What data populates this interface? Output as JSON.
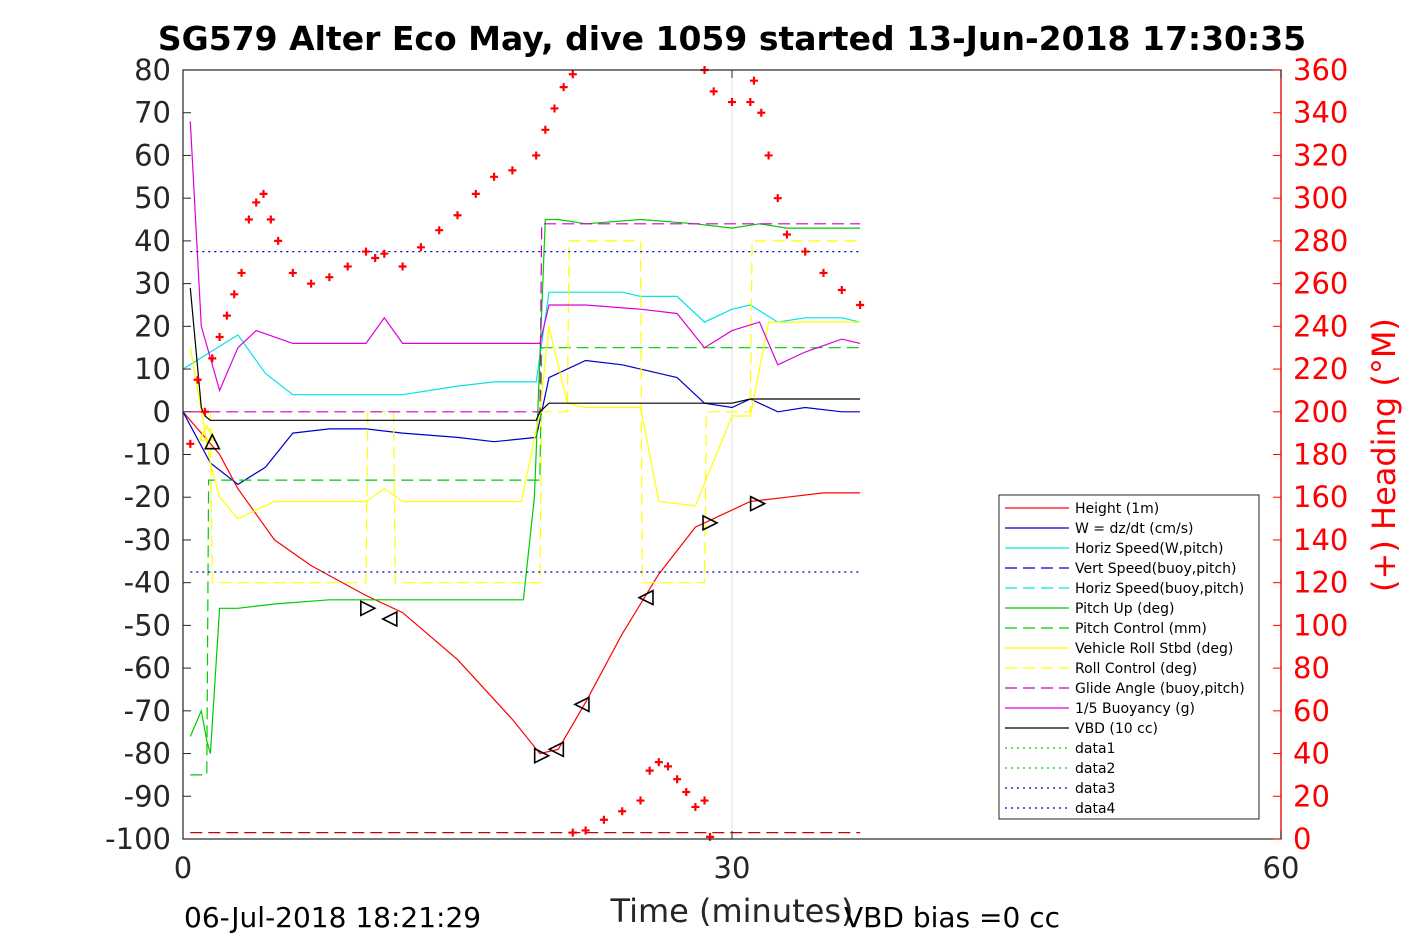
{
  "chart_data": {
    "type": "line",
    "title": "SG579 Alter Eco May, dive 1059 started 13-Jun-2018 17:30:35",
    "xlabel": "Time (minutes)",
    "ylabel": "",
    "y2label": "(+) Heading (°M)",
    "xlim": [
      0,
      60
    ],
    "ylim": [
      -100,
      80
    ],
    "y2lim": [
      0,
      360
    ],
    "xticks": [
      "0",
      "30",
      "60"
    ],
    "yticks": [
      "80",
      "70",
      "60",
      "50",
      "40",
      "30",
      "20",
      "10",
      "0",
      "-10",
      "-20",
      "-30",
      "-40",
      "-50",
      "-60",
      "-70",
      "-80",
      "-90",
      "-100"
    ],
    "y2ticks": [
      "360",
      "340",
      "320",
      "300",
      "280",
      "260",
      "240",
      "220",
      "200",
      "180",
      "160",
      "140",
      "120",
      "100",
      "80",
      "60",
      "40",
      "20",
      "0"
    ],
    "grid": "x-only at 30",
    "legend_position": "lower-right",
    "footer_left": "06-Jul-2018 18:21:29",
    "footer_right": "VBD bias =0 cc",
    "colors": {
      "axis": "#000000",
      "right_axis": "#ff0000"
    },
    "series": [
      {
        "name": "Height (1m)",
        "color": "#ff0000",
        "style": "solid",
        "x": [
          0,
          1,
          2,
          3,
          4,
          5,
          7,
          10,
          12,
          15,
          18,
          19.5,
          20.5,
          22,
          24,
          26,
          28,
          29.5,
          31,
          33,
          35,
          37
        ],
        "y": [
          0,
          -5,
          -10,
          -18,
          -24,
          -30,
          -36,
          -43,
          -47,
          -58,
          -72,
          -80,
          -79,
          -68,
          -52,
          -38,
          -27,
          -24,
          -21,
          -20,
          -19,
          -19
        ]
      },
      {
        "name": "W = dz/dt (cm/s)",
        "color": "#0000cc",
        "style": "solid",
        "x": [
          0,
          1.5,
          3,
          4.5,
          6,
          8,
          10,
          12,
          15,
          17,
          19.3,
          20,
          22,
          24,
          25,
          27,
          28.5,
          30,
          31,
          32.5,
          34,
          36,
          37
        ],
        "y": [
          0,
          -12,
          -17,
          -13,
          -5,
          -4,
          -4,
          -5,
          -6,
          -7,
          -6,
          8,
          12,
          11,
          10,
          8,
          2,
          1,
          3,
          0,
          1,
          0,
          0
        ]
      },
      {
        "name": "Horiz Speed(W,pitch)",
        "color": "#00e5e5",
        "style": "solid",
        "x": [
          0,
          1.5,
          3,
          4.5,
          6,
          8,
          10,
          12,
          15,
          17,
          19.3,
          20,
          22,
          24,
          25,
          27,
          28.5,
          30,
          31,
          32.5,
          34,
          36,
          37
        ],
        "y": [
          10,
          14,
          18,
          9,
          4,
          4,
          4,
          4,
          6,
          7,
          7,
          28,
          28,
          28,
          27,
          27,
          21,
          24,
          25,
          21,
          22,
          22,
          21
        ]
      },
      {
        "name": "Vert Speed(buoy,pitch)",
        "color": "#0000cc",
        "style": "dashed",
        "x": [],
        "y": []
      },
      {
        "name": "Horiz Speed(buoy,pitch)",
        "color": "#00e5e5",
        "style": "dashed",
        "x": [],
        "y": []
      },
      {
        "name": "Pitch Up (deg)",
        "color": "#00cc00",
        "style": "solid",
        "x": [
          0.4,
          1,
          1.3,
          1.5,
          2,
          3,
          5,
          8,
          10,
          12,
          15,
          18.6,
          19.2,
          19.8,
          20.5,
          22,
          25,
          28,
          30,
          31.5,
          33,
          35,
          37
        ],
        "y": [
          -76,
          -70,
          -77,
          -80,
          -46,
          -46,
          -45,
          -44,
          -44,
          -44,
          -44,
          -44,
          -20,
          45,
          45,
          44,
          45,
          44,
          43,
          44,
          43,
          43,
          43
        ]
      },
      {
        "name": "Pitch Control (mm)",
        "color": "#00cc00",
        "style": "dashed",
        "x": [
          0.4,
          1.3,
          1.4,
          19.5,
          19.6,
          37
        ],
        "y": [
          -85,
          -85,
          -16,
          -16,
          15,
          15
        ]
      },
      {
        "name": "Vehicle Roll Stbd (deg)",
        "color": "#ffff00",
        "style": "solid",
        "x": [
          0.4,
          1.5,
          2,
          3,
          5,
          10,
          11,
          12,
          15,
          18.5,
          19.5,
          20,
          21,
          22,
          25,
          26,
          28,
          30,
          31,
          32,
          34,
          37
        ],
        "y": [
          15,
          -12,
          -20,
          -25,
          -21,
          -21,
          -18,
          -21,
          -21,
          -21,
          0,
          20,
          2,
          1,
          1,
          -21,
          -22,
          -1,
          -1,
          21,
          21,
          21
        ]
      },
      {
        "name": "Roll Control (deg)",
        "color": "#ffff00",
        "style": "dashed",
        "x": [
          0.4,
          1.5,
          1.6,
          10,
          10.1,
          11.5,
          11.6,
          19.5,
          19.6,
          21,
          21.1,
          25,
          25.1,
          28.5,
          28.6,
          31,
          31.1,
          37
        ],
        "y": [
          0,
          0,
          -40,
          -40,
          0,
          0,
          -40,
          -40,
          0,
          0,
          40,
          40,
          -40,
          -40,
          0,
          0,
          40,
          40
        ]
      },
      {
        "name": "Glide Angle (buoy,pitch)",
        "color": "#cc00cc",
        "style": "dashed",
        "x": [
          0.4,
          19.5,
          19.6,
          37
        ],
        "y": [
          0,
          0,
          44,
          44
        ]
      },
      {
        "name": "1/5 Buoyancy (g)",
        "color": "#dd00dd",
        "style": "solid",
        "x": [
          0.4,
          1,
          2,
          3,
          4,
          6,
          8,
          10,
          11,
          12,
          15,
          19.5,
          20,
          22,
          25,
          27,
          28.5,
          30,
          31.5,
          32.5,
          34,
          36,
          37
        ],
        "y": [
          68,
          20,
          5,
          15,
          19,
          16,
          16,
          16,
          22,
          16,
          16,
          16,
          25,
          25,
          24,
          23,
          15,
          19,
          21,
          11,
          14,
          17,
          16
        ]
      },
      {
        "name": "VBD (10 cc)",
        "color": "#000000",
        "style": "solid",
        "x": [
          0.4,
          1,
          1.2,
          1.5,
          19.3,
          19.5,
          20,
          25,
          30,
          31,
          37
        ],
        "y": [
          29,
          1,
          -1,
          -2,
          -2,
          0,
          2,
          2,
          2,
          3,
          3
        ]
      },
      {
        "name": "data1",
        "color": "#00cc00",
        "style": "dotted",
        "x": [],
        "y": []
      },
      {
        "name": "data2",
        "color": "#00cc00",
        "style": "dotted",
        "x": [],
        "y": []
      },
      {
        "name": "data3",
        "color": "#0000cc",
        "style": "dotted",
        "x": [
          0.4,
          37
        ],
        "y": [
          37.5,
          37.5
        ]
      },
      {
        "name": "data4",
        "color": "#0000cc",
        "style": "dotted",
        "x": [
          0.4,
          37
        ],
        "y": [
          -37.5,
          -37.5
        ]
      }
    ],
    "extra_lines": [
      {
        "color": "#cc0000",
        "style": "dashed",
        "x": [
          0.4,
          37
        ],
        "y": [
          -98.5,
          -98.5
        ]
      }
    ],
    "heading": {
      "color": "#ff0000",
      "marker": "+",
      "axis": "right",
      "x": [
        0.4,
        0.8,
        1.2,
        1.6,
        2.0,
        2.4,
        2.8,
        3.2,
        3.6,
        4.0,
        4.4,
        4.8,
        5.2,
        6,
        7,
        8,
        9,
        10,
        10.5,
        11,
        12,
        13,
        14,
        15,
        16,
        17,
        18,
        19.3,
        19.8,
        20.3,
        20.8,
        21.3,
        28.5,
        29,
        30,
        31,
        31.2,
        31.6,
        32,
        32.5,
        33,
        34,
        35,
        36,
        37
      ],
      "y": [
        185,
        215,
        200,
        225,
        235,
        245,
        255,
        265,
        290,
        298,
        302,
        290,
        280,
        265,
        260,
        263,
        268,
        275,
        272,
        274,
        268,
        277,
        285,
        292,
        302,
        310,
        313,
        320,
        332,
        342,
        352,
        358,
        360,
        350,
        345,
        345,
        355,
        340,
        320,
        300,
        283,
        275,
        265,
        257,
        250
      ]
    },
    "heading_low": {
      "x": [
        21.3,
        22,
        23,
        24,
        25,
        25.5,
        26,
        26.5,
        27,
        27.5,
        28,
        28.5,
        28.8
      ],
      "y": [
        3,
        4,
        9,
        13,
        18,
        32,
        36,
        34,
        28,
        22,
        15,
        18,
        1
      ]
    },
    "markers": [
      {
        "x": 1.3,
        "y": -5,
        "dir": "up",
        "color": "#ffff00"
      },
      {
        "x": 1.6,
        "y": -7,
        "dir": "up",
        "color": "#000000"
      },
      {
        "x": 10.1,
        "y": -46,
        "dir": "right",
        "color": "#000000"
      },
      {
        "x": 11.3,
        "y": -48.5,
        "dir": "left",
        "color": "#000000"
      },
      {
        "x": 19.6,
        "y": -80.5,
        "dir": "right",
        "color": "#000000"
      },
      {
        "x": 20.4,
        "y": -79,
        "dir": "left",
        "color": "#000000"
      },
      {
        "x": 21.8,
        "y": -68.5,
        "dir": "left",
        "color": "#000000"
      },
      {
        "x": 25.3,
        "y": -43.5,
        "dir": "left",
        "color": "#000000"
      },
      {
        "x": 28.8,
        "y": -26,
        "dir": "right",
        "color": "#000000"
      },
      {
        "x": 31.4,
        "y": -21.5,
        "dir": "right",
        "color": "#000000"
      }
    ]
  }
}
